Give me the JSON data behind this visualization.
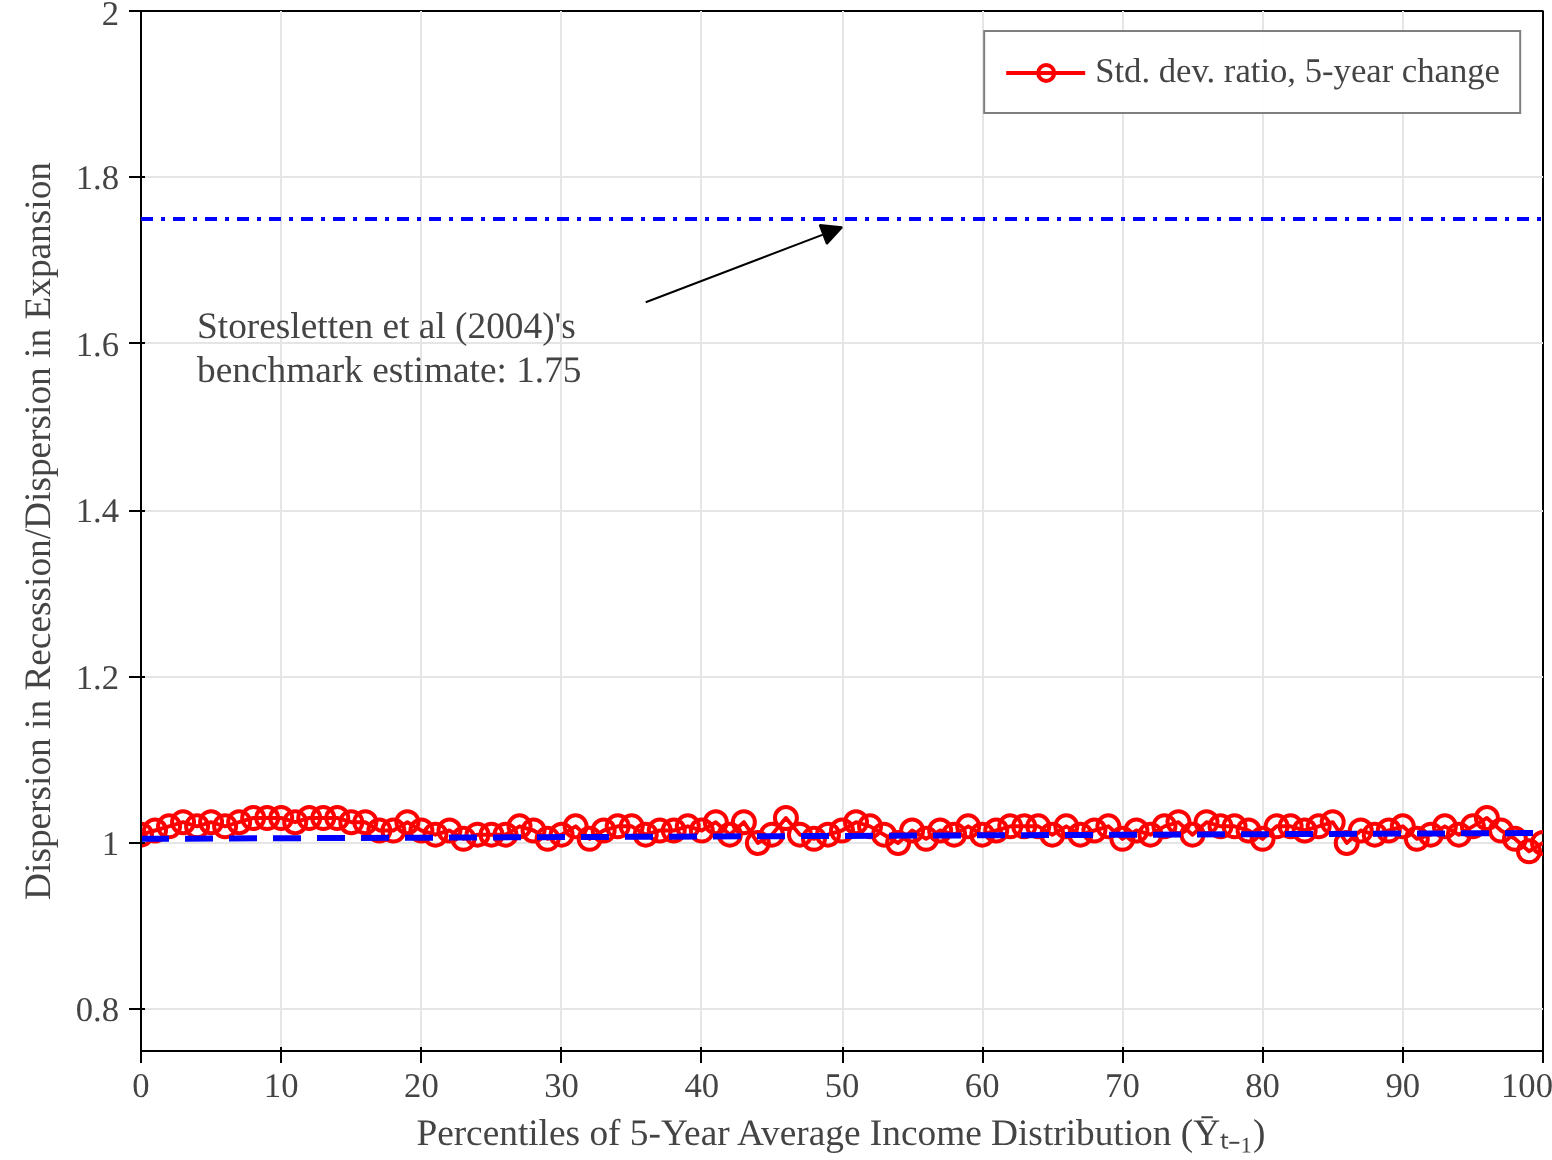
{
  "chart_data": {
    "type": "line",
    "xlabel": "Percentiles of 5-Year Average Income Distribution (Ȳₜ₋₁)",
    "ylabel": "Dispersion in Recession/Dispersion in Expansion",
    "xlim": [
      0,
      100
    ],
    "ylim": [
      0.75,
      2
    ],
    "xticks": [
      0,
      10,
      20,
      30,
      40,
      50,
      60,
      70,
      80,
      90,
      100
    ],
    "yticks": [
      0.8,
      1,
      1.2,
      1.4,
      1.6,
      1.8,
      2
    ],
    "grid": true,
    "legend": "top right",
    "series": [
      {
        "name": "Std. dev. ratio, 5-year change",
        "color": "#ff0000",
        "marker": "circle",
        "line_style": "solid",
        "x": [
          0,
          1,
          2,
          3,
          4,
          5,
          6,
          7,
          8,
          9,
          10,
          11,
          12,
          13,
          14,
          15,
          16,
          17,
          18,
          19,
          20,
          21,
          22,
          23,
          24,
          25,
          26,
          27,
          28,
          29,
          30,
          31,
          32,
          33,
          34,
          35,
          36,
          37,
          38,
          39,
          40,
          41,
          42,
          43,
          44,
          45,
          46,
          47,
          48,
          49,
          50,
          51,
          52,
          53,
          54,
          55,
          56,
          57,
          58,
          59,
          60,
          61,
          62,
          63,
          64,
          65,
          66,
          67,
          68,
          69,
          70,
          71,
          72,
          73,
          74,
          75,
          76,
          77,
          78,
          79,
          80,
          81,
          82,
          83,
          84,
          85,
          86,
          87,
          88,
          89,
          90,
          91,
          92,
          93,
          94,
          95,
          96,
          97,
          98,
          99,
          100
        ],
        "values": [
          1.01,
          1.015,
          1.02,
          1.025,
          1.02,
          1.025,
          1.02,
          1.025,
          1.03,
          1.03,
          1.03,
          1.025,
          1.03,
          1.03,
          1.03,
          1.025,
          1.025,
          1.015,
          1.015,
          1.025,
          1.015,
          1.01,
          1.015,
          1.005,
          1.01,
          1.01,
          1.01,
          1.02,
          1.015,
          1.005,
          1.01,
          1.02,
          1.005,
          1.015,
          1.02,
          1.02,
          1.01,
          1.015,
          1.015,
          1.02,
          1.015,
          1.025,
          1.01,
          1.025,
          1.0,
          1.01,
          1.03,
          1.01,
          1.005,
          1.01,
          1.015,
          1.025,
          1.02,
          1.01,
          1.0,
          1.015,
          1.005,
          1.015,
          1.01,
          1.02,
          1.01,
          1.015,
          1.02,
          1.02,
          1.02,
          1.01,
          1.02,
          1.01,
          1.015,
          1.02,
          1.005,
          1.015,
          1.01,
          1.02,
          1.025,
          1.01,
          1.025,
          1.02,
          1.02,
          1.015,
          1.005,
          1.02,
          1.02,
          1.015,
          1.02,
          1.025,
          1.0,
          1.015,
          1.01,
          1.015,
          1.02,
          1.005,
          1.01,
          1.02,
          1.01,
          1.02,
          1.03,
          1.015,
          1.005,
          0.99,
          1.0
        ]
      },
      {
        "color": "#0000ff",
        "marker": "none",
        "line_style": "dashed",
        "x": [
          0,
          100
        ],
        "values": [
          1.005,
          1.012
        ]
      }
    ],
    "ref_lines": [
      {
        "axis": "y",
        "value": 1.75,
        "color": "#0000ff",
        "line_style": "dashdot"
      }
    ],
    "annotations": [
      "Storesletten et al (2004)'s\nbenchmark estimate: 1.75"
    ]
  }
}
